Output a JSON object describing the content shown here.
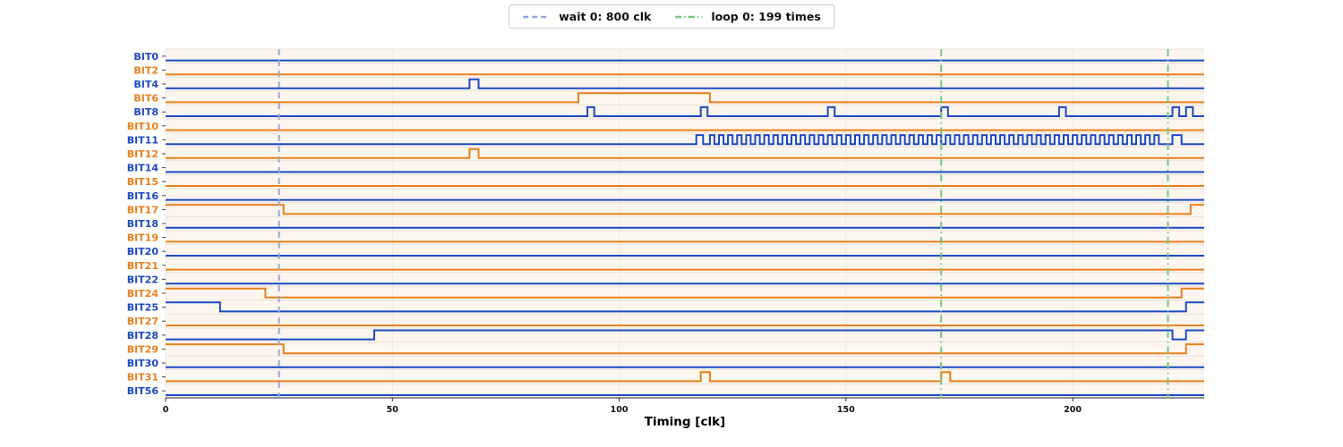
{
  "chart_data": {
    "type": "digital-timing",
    "xlabel": "Timing [clk]",
    "xlim": [
      0,
      229
    ],
    "xticks": [
      0,
      50,
      100,
      150,
      200
    ],
    "grid": true,
    "plot_bg": "#fdf6ee",
    "palette": {
      "blue": "#1a49c4",
      "orange": "#e97f1c"
    },
    "markers": [
      {
        "type": "wait",
        "label": "wait 0: 800 clk",
        "x": [
          25
        ],
        "color": "#93a7dc",
        "dash": "dashed"
      },
      {
        "type": "loop",
        "label": "loop 0: 199 times",
        "x": [
          171,
          221
        ],
        "color": "#6fcb7d",
        "dash": "dashdot"
      }
    ],
    "signals": [
      {
        "name": "BIT0",
        "color": "blue",
        "initial": 0,
        "transitions": []
      },
      {
        "name": "BIT2",
        "color": "orange",
        "initial": 0,
        "transitions": []
      },
      {
        "name": "BIT4",
        "color": "blue",
        "initial": 0,
        "transitions": [
          67,
          69
        ]
      },
      {
        "name": "BIT6",
        "color": "orange",
        "initial": 0,
        "transitions": [
          91,
          120
        ]
      },
      {
        "name": "BIT8",
        "color": "blue",
        "initial": 0,
        "transitions": [
          93,
          94.5,
          118,
          119.5,
          146,
          147.5,
          171,
          172.5,
          197,
          198.5,
          222,
          223.5,
          225,
          226.5
        ]
      },
      {
        "name": "BIT10",
        "color": "orange",
        "initial": 0,
        "transitions": []
      },
      {
        "name": "BIT11",
        "color": "blue",
        "initial": 0,
        "transitions": [
          117,
          118.5,
          [
            120,
            219,
            1
          ],
          222,
          224
        ]
      },
      {
        "name": "BIT12",
        "color": "orange",
        "initial": 0,
        "transitions": [
          67,
          69
        ]
      },
      {
        "name": "BIT14",
        "color": "blue",
        "initial": 0,
        "transitions": []
      },
      {
        "name": "BIT15",
        "color": "orange",
        "initial": 0,
        "transitions": []
      },
      {
        "name": "BIT16",
        "color": "blue",
        "initial": 0,
        "transitions": []
      },
      {
        "name": "BIT17",
        "color": "orange",
        "initial": 1,
        "transitions": [
          26,
          226
        ]
      },
      {
        "name": "BIT18",
        "color": "blue",
        "initial": 0,
        "transitions": []
      },
      {
        "name": "BIT19",
        "color": "orange",
        "initial": 0,
        "transitions": []
      },
      {
        "name": "BIT20",
        "color": "blue",
        "initial": 0,
        "transitions": []
      },
      {
        "name": "BIT21",
        "color": "orange",
        "initial": 0,
        "transitions": []
      },
      {
        "name": "BIT22",
        "color": "blue",
        "initial": 0,
        "transitions": []
      },
      {
        "name": "BIT24",
        "color": "orange",
        "initial": 1,
        "transitions": [
          22,
          224
        ]
      },
      {
        "name": "BIT25",
        "color": "blue",
        "initial": 1,
        "transitions": [
          12,
          225
        ]
      },
      {
        "name": "BIT27",
        "color": "orange",
        "initial": 0,
        "transitions": []
      },
      {
        "name": "BIT28",
        "color": "blue",
        "initial": 0,
        "transitions": [
          46,
          222,
          225
        ]
      },
      {
        "name": "BIT29",
        "color": "orange",
        "initial": 1,
        "transitions": [
          26,
          225
        ]
      },
      {
        "name": "BIT30",
        "color": "blue",
        "initial": 0,
        "transitions": []
      },
      {
        "name": "BIT31",
        "color": "orange",
        "initial": 0,
        "transitions": [
          118,
          120,
          171,
          173
        ]
      },
      {
        "name": "BIT56",
        "color": "blue",
        "initial": 0,
        "transitions": []
      }
    ]
  }
}
